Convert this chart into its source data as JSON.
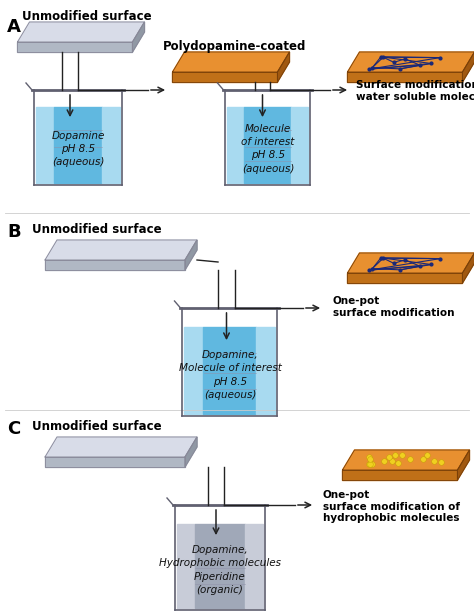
{
  "bg_color": "#ffffff",
  "label_A": "A",
  "label_B": "B",
  "label_C": "C",
  "unmodified_label": "Unmodified surface",
  "polydopamine_label": "Polydopamine-coated",
  "surface_mod_water": "Surface modification of\nwater soluble molecules",
  "one_pot_mod": "One-pot\nsurface modification",
  "one_pot_hydro": "One-pot\nsurface modification of\nhydrophobic molecules",
  "beaker_A1_label": "Dopamine\npH 8.5\n(aqueous)",
  "beaker_A2_label": "Molecule\nof interest\npH 8.5\n(aqueous)",
  "beaker_B_label": "Dopamine,\nMolecule of interest\npH 8.5\n(aqueous)",
  "beaker_C_label": "Dopamine,\nHydrophobic molecules\nPiperidine\n(organic)",
  "blue_liq1": "#a8daf0",
  "blue_liq2": "#60b8e0",
  "blue_liq3": "#3898c8",
  "gray_liq1": "#c8ccd8",
  "gray_liq2": "#a0a8b8",
  "gray_liq3": "#888898",
  "navy": "#1a2878",
  "yellow": "#f0d020",
  "orange_top": "#e89030",
  "orange_front": "#c07018",
  "orange_side": "#a05810",
  "gray_top": "#d8dce8",
  "gray_front": "#b0b8c4",
  "gray_side": "#9098a4",
  "beaker_line": "#606070",
  "arrow_color": "#222222",
  "text_color": "#111111",
  "divider_color": "#cccccc"
}
